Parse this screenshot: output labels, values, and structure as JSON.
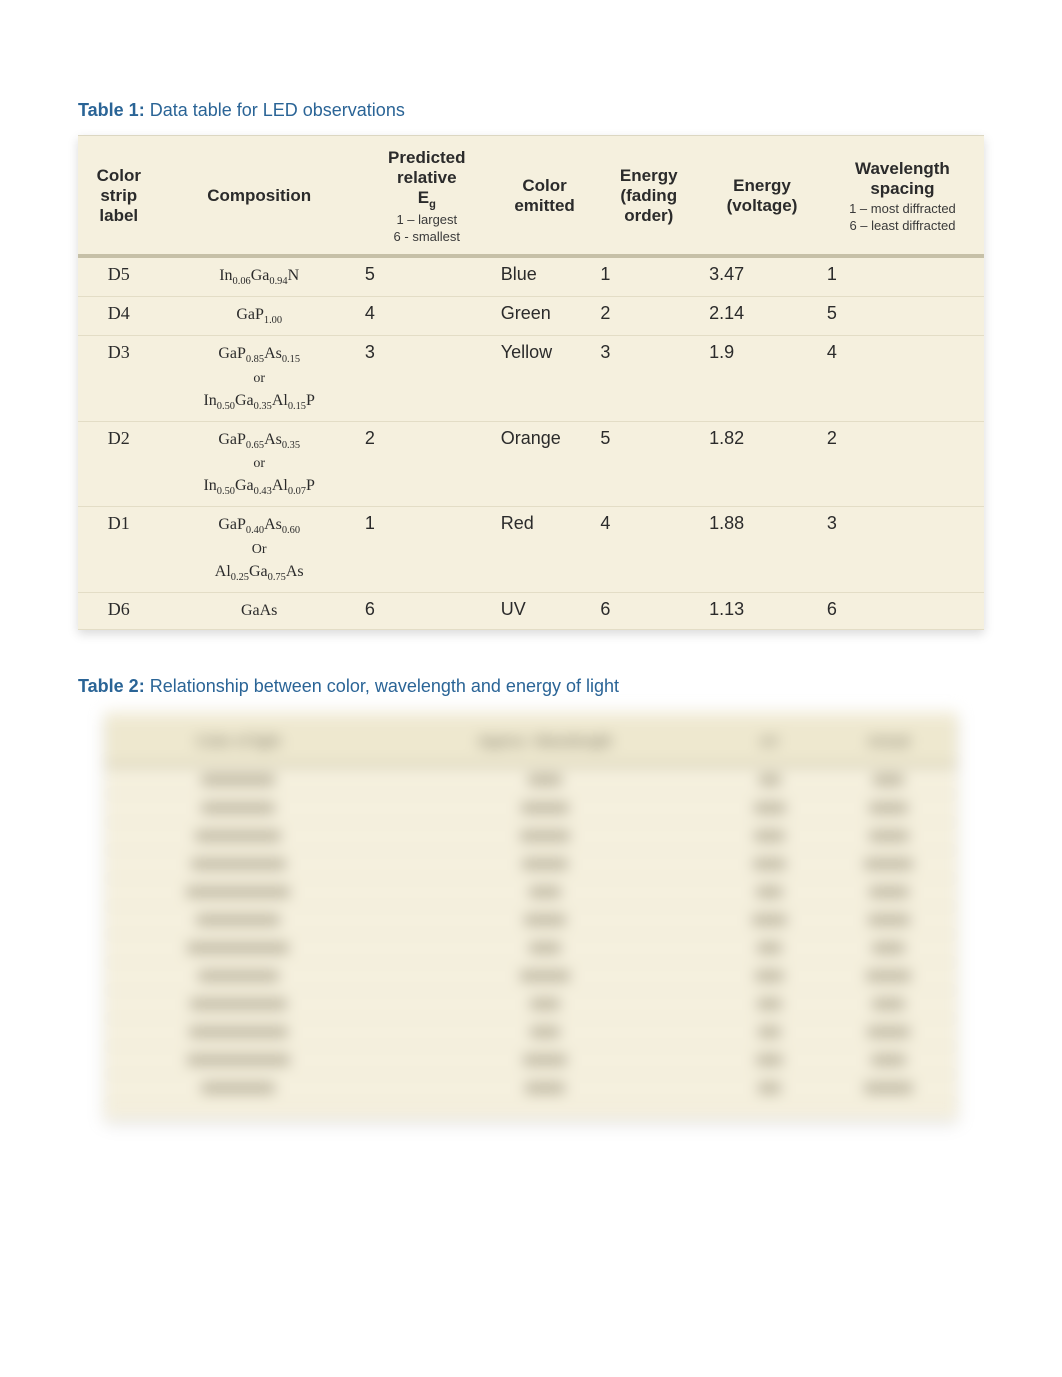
{
  "table1": {
    "captionLabel": "Table 1:",
    "captionText": " Data table for LED observations",
    "headers": {
      "label": "Color strip label",
      "composition": "Composition",
      "predicted_main": "Predicted relative",
      "predicted_symbol": "E",
      "predicted_subscript": "g",
      "predicted_sub1": "1 – largest",
      "predicted_sub2": "6 - smallest",
      "color": "Color emitted",
      "fading": "Energy (fading order)",
      "voltage": "Energy (voltage)",
      "wave_main": "Wavelength spacing",
      "wave_sub1": "1 – most diffracted",
      "wave_sub2": "6 – least diffracted"
    },
    "rows": [
      {
        "label": "D5",
        "comp_lines": [
          "In<sub>0.06</sub>Ga<sub>0.94</sub>N"
        ],
        "pred": "5",
        "color": "Blue",
        "fading": "1",
        "voltage": "3.47",
        "wave": "1"
      },
      {
        "label": "D4",
        "comp_lines": [
          "GaP<sub>1.00</sub>"
        ],
        "pred": "4",
        "color": "Green",
        "fading": "2",
        "voltage": "2.14",
        "wave": "5"
      },
      {
        "label": "D3",
        "comp_lines": [
          "GaP<sub>0.85</sub>As<sub>0.15</sub>",
          "or",
          "In<sub>0.50</sub>Ga<sub>0.35</sub>Al<sub>0.15</sub>P"
        ],
        "pred": "3",
        "color": "Yellow",
        "fading": "3",
        "voltage": "1.9",
        "wave": "4"
      },
      {
        "label": "D2",
        "comp_lines": [
          "GaP<sub>0.65</sub>As<sub>0.35</sub>",
          "or",
          "In<sub>0.50</sub>Ga<sub>0.43</sub>Al<sub>0.07</sub>P"
        ],
        "pred": "2",
        "color": "Orange",
        "fading": "5",
        "voltage": "1.82",
        "wave": "2"
      },
      {
        "label": "D1",
        "comp_lines": [
          "GaP<sub>0.40</sub>As<sub>0.60</sub>",
          "Or",
          "Al<sub>0.25</sub>Ga<sub>0.75</sub>As"
        ],
        "pred": "1",
        "color": "Red",
        "fading": "4",
        "voltage": "1.88",
        "wave": "3"
      },
      {
        "label": "D6",
        "comp_lines": [
          "GaAs"
        ],
        "pred": "6",
        "color": "UV",
        "fading": "6",
        "voltage": "1.13",
        "wave": "6"
      }
    ]
  },
  "table2": {
    "captionLabel": "Table 2:",
    "captionText": " Relationship between color, wavelength and energy of light",
    "headers": [
      "Color of light",
      "Approx. Wavelength",
      "eV",
      "Actual"
    ],
    "row_count": 12
  },
  "colors": {
    "page_bg": "#ffffff",
    "table_bg": "#f5f0de",
    "caption_color": "#2a6496",
    "header_border": "#c6c0a7",
    "row_divider_light": "#ffffff",
    "row_divider_dark": "#e3ddc6",
    "text_color": "#2b2b2b"
  }
}
